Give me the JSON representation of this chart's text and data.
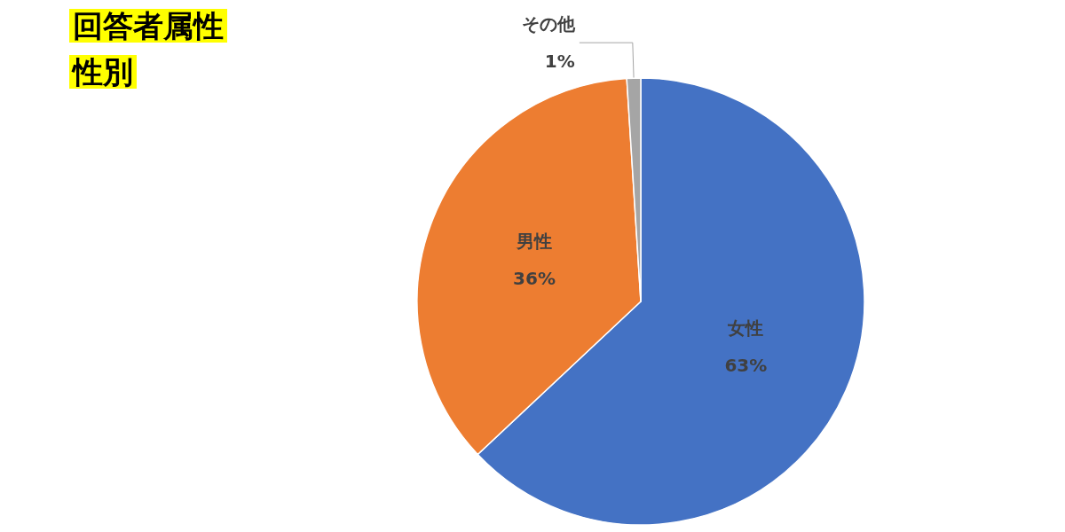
{
  "chart_data": {
    "type": "pie",
    "title": "回答者属性",
    "subtitle": "性別",
    "categories": [
      "女性",
      "男性",
      "その他"
    ],
    "values": [
      63,
      36,
      1
    ],
    "value_labels": [
      "63%",
      "36%",
      "1%"
    ],
    "colors": [
      "#4472c4",
      "#ed7d31",
      "#a5a5a5"
    ],
    "legend": false
  }
}
